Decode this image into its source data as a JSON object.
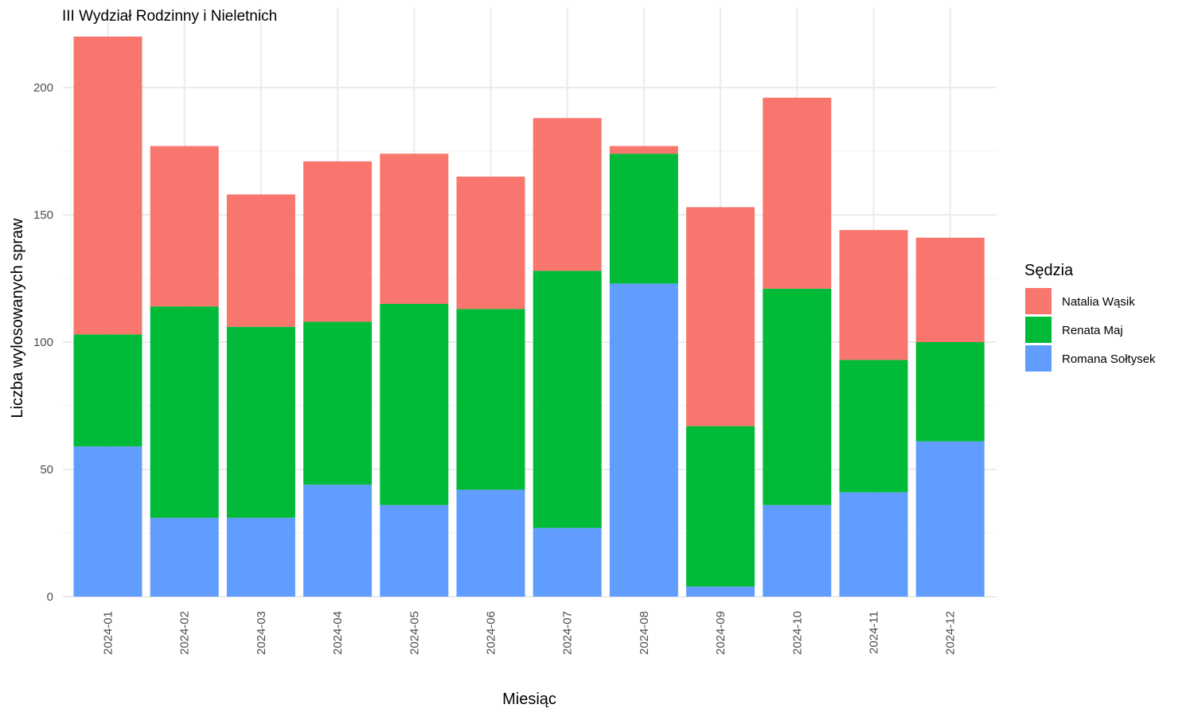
{
  "chart_data": {
    "type": "bar",
    "stacked": true,
    "title": "III Wydział Rodzinny i Nieletnich",
    "xlabel": "Miesiąc",
    "ylabel": "Liczba wylosowanych spraw",
    "categories": [
      "2024-01",
      "2024-02",
      "2024-03",
      "2024-04",
      "2024-05",
      "2024-06",
      "2024-07",
      "2024-08",
      "2024-09",
      "2024-10",
      "2024-11",
      "2024-12"
    ],
    "ylim": [
      0,
      220
    ],
    "yticks": [
      0,
      50,
      100,
      150,
      200
    ],
    "grid": true,
    "legend": {
      "title": "Sędzia",
      "position": "right"
    },
    "series": [
      {
        "name": "Romana Sołtysek",
        "color": "#619CFF",
        "values": [
          59,
          31,
          31,
          44,
          36,
          42,
          27,
          123,
          4,
          36,
          41,
          61
        ]
      },
      {
        "name": "Renata Maj",
        "color": "#00BA38",
        "values": [
          44,
          83,
          75,
          64,
          79,
          71,
          101,
          51,
          63,
          85,
          52,
          39
        ]
      },
      {
        "name": "Natalia Wąsik",
        "color": "#F8766D",
        "values": [
          117,
          63,
          52,
          63,
          59,
          52,
          60,
          3,
          86,
          75,
          51,
          41
        ]
      }
    ],
    "legend_order": [
      "Natalia Wąsik",
      "Renata Maj",
      "Romana Sołtysek"
    ]
  }
}
